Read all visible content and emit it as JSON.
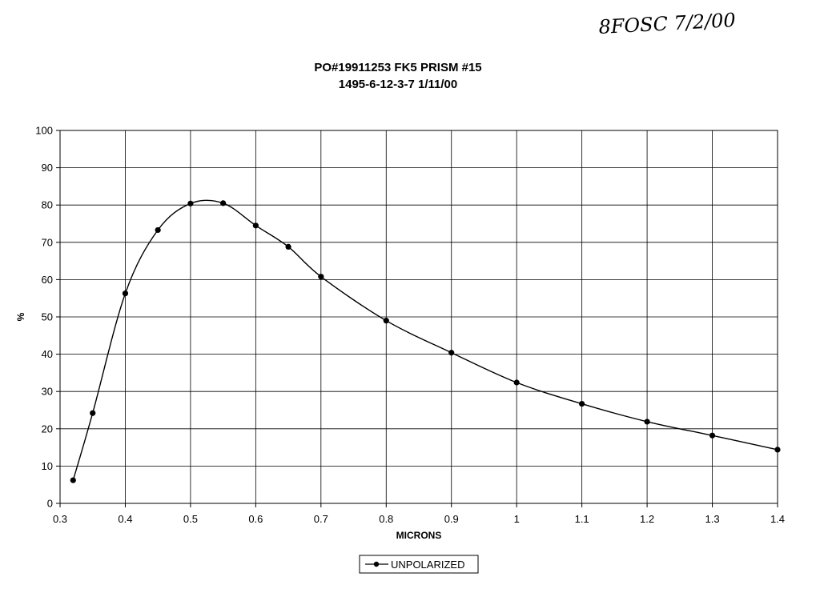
{
  "annotation": "8FOSC 7/2/00",
  "chart_data": {
    "type": "line",
    "title": [
      "PO#19911253 FK5 PRISM #15",
      "1495-6-12-3-7 1/11/00"
    ],
    "xlabel": "MICRONS",
    "ylabel": "%",
    "x_ticks": [
      "0.3",
      "0.4",
      "0.5",
      "0.6",
      "0.7",
      "0.8",
      "0.9",
      "1",
      "1.1",
      "1.2",
      "1.3",
      "1.4"
    ],
    "y_ticks": [
      "0",
      "10",
      "20",
      "30",
      "40",
      "50",
      "60",
      "70",
      "80",
      "90",
      "100"
    ],
    "ylim": [
      0,
      100
    ],
    "grid": true,
    "legend": "bottom",
    "series": [
      {
        "name": "UNPOLARIZED",
        "color": "#000000",
        "marker": "circle",
        "x": [
          0.32,
          0.35,
          0.4,
          0.45,
          0.5,
          0.55,
          0.6,
          0.65,
          0.7,
          0.8,
          0.9,
          1.0,
          1.1,
          1.2,
          1.3,
          1.4
        ],
        "y": [
          6.2,
          24.2,
          56.3,
          73.3,
          80.4,
          80.5,
          74.5,
          68.8,
          60.8,
          49.0,
          40.4,
          32.4,
          26.7,
          21.9,
          18.2,
          14.4
        ]
      }
    ]
  }
}
